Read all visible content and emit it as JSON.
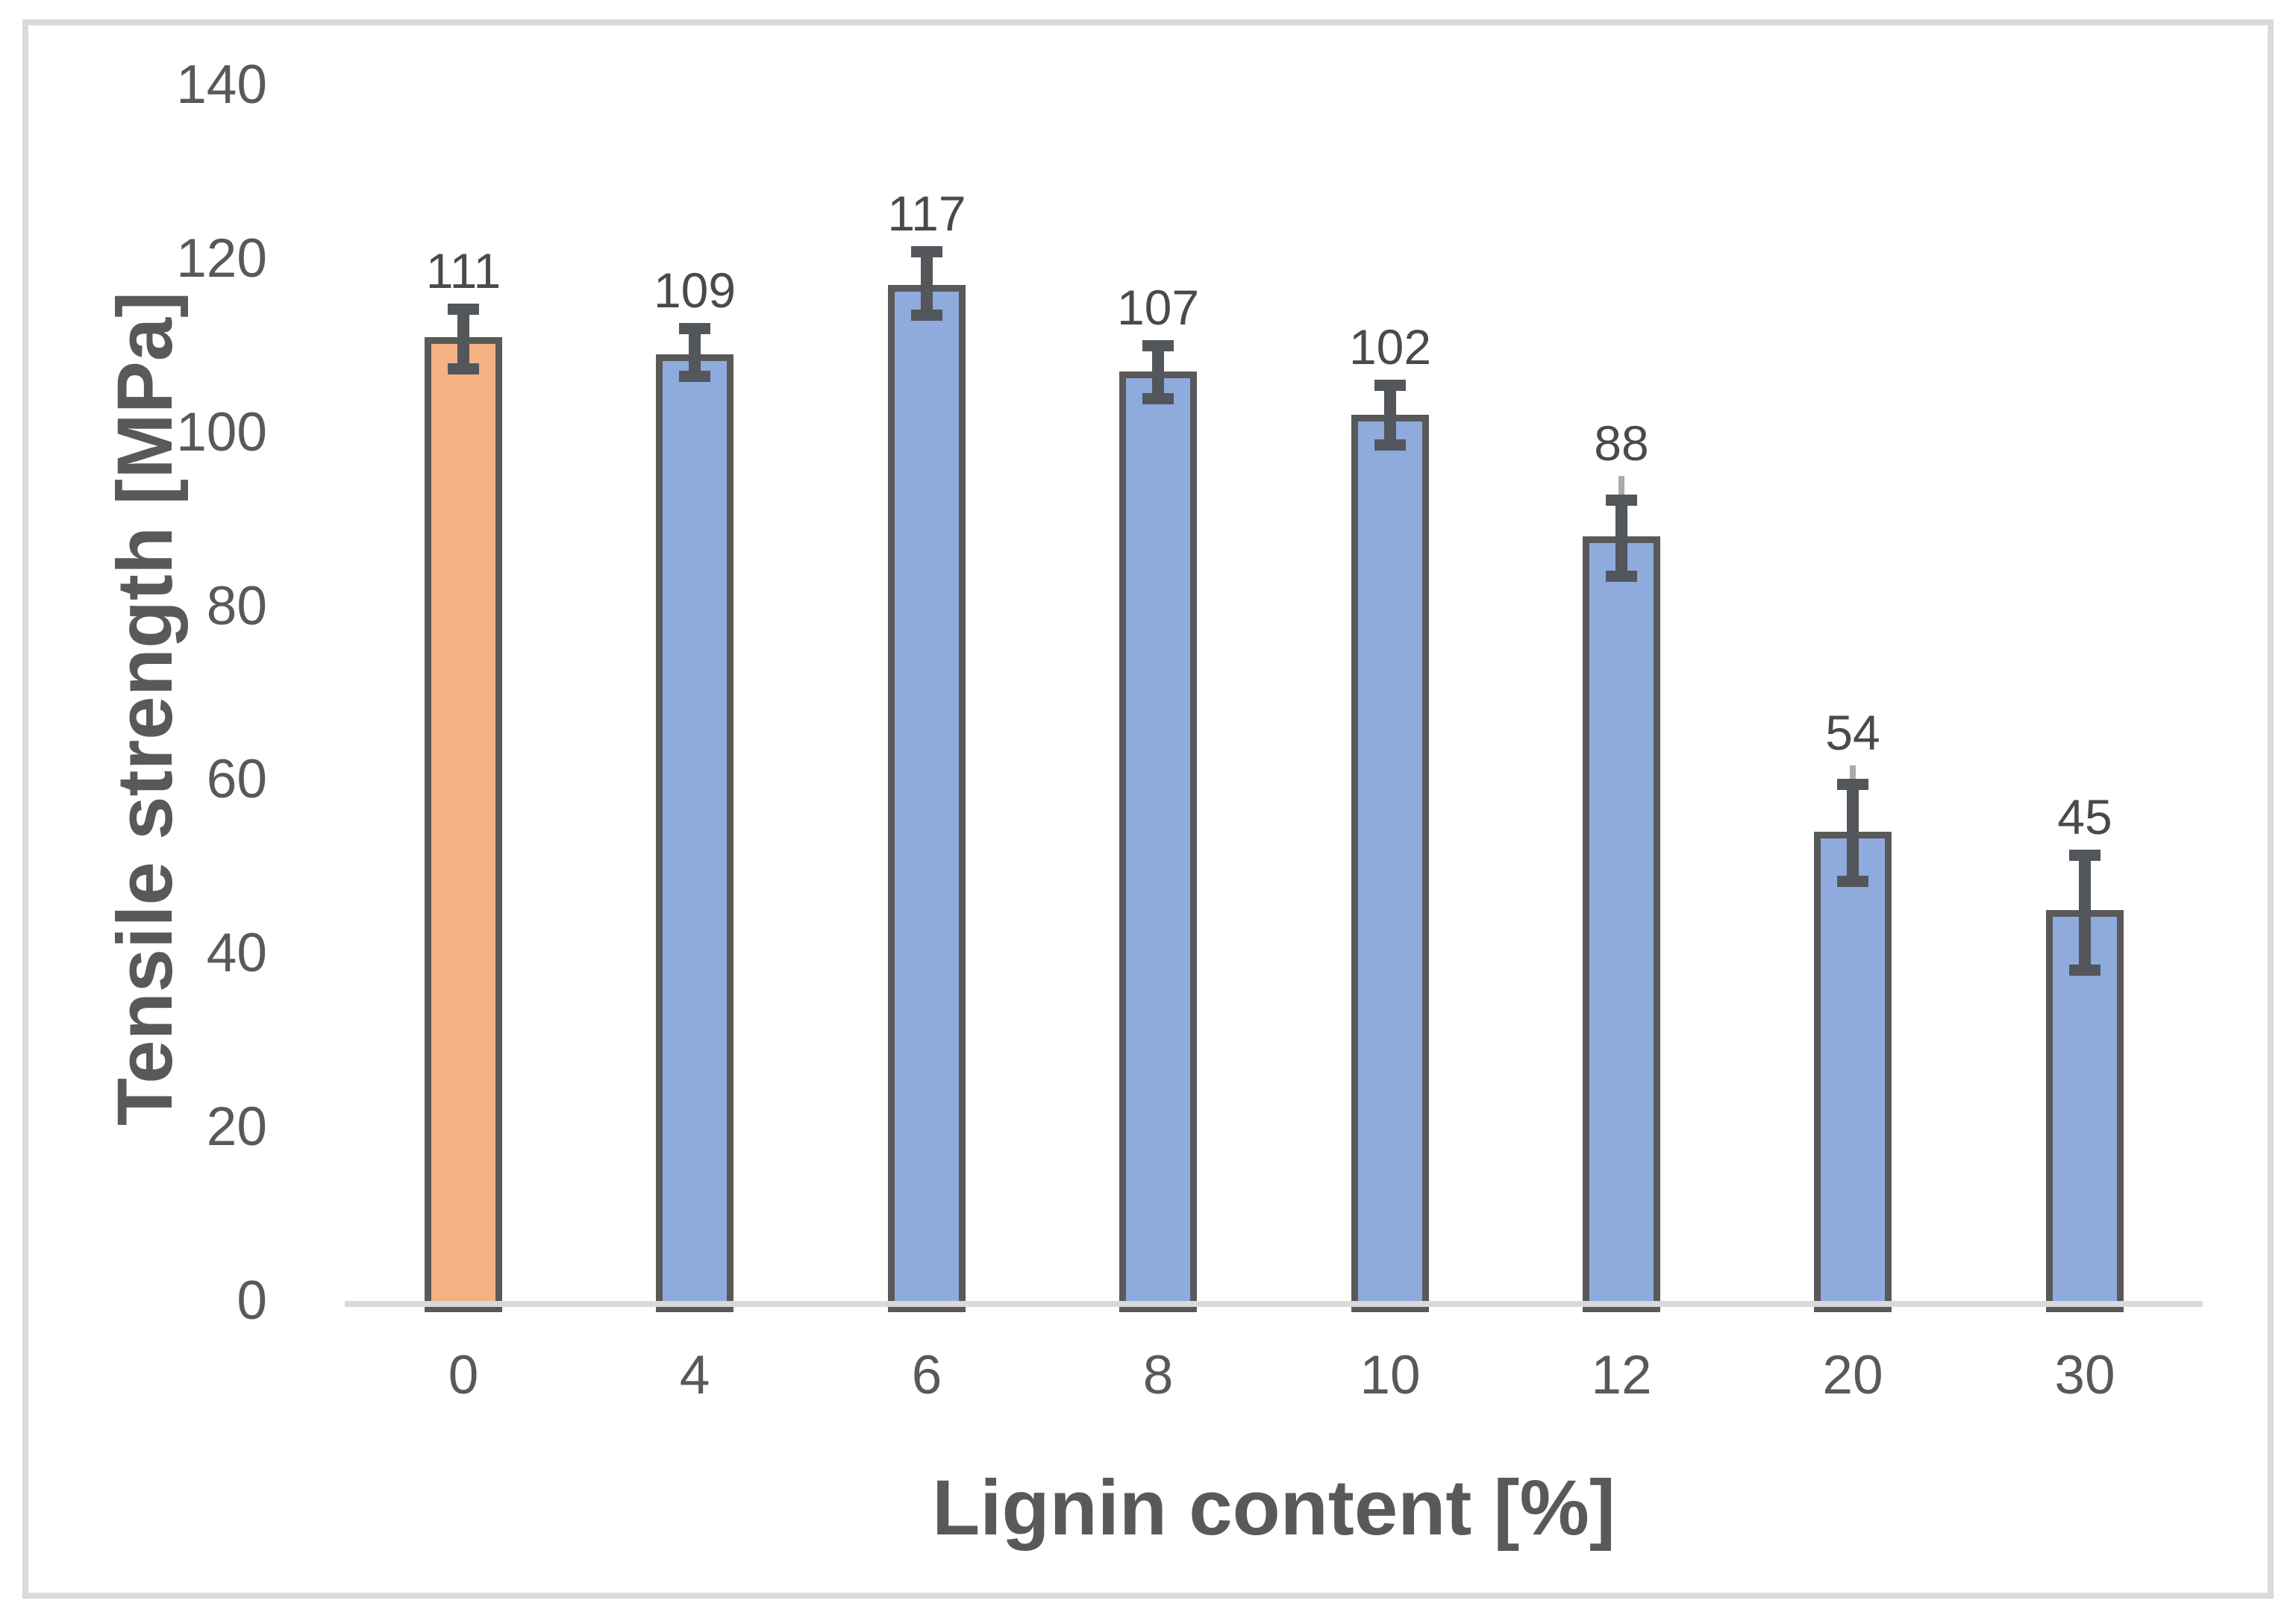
{
  "chart_data": {
    "type": "bar",
    "title": "",
    "xlabel": "Lignin content [%]",
    "ylabel": "Tensile strength [MPa]",
    "categories": [
      "0",
      "4",
      "6",
      "8",
      "10",
      "12",
      "20",
      "30"
    ],
    "values": [
      111,
      109,
      117,
      107,
      102,
      88,
      54,
      45
    ],
    "data_labels": [
      "111",
      "109",
      "117",
      "107",
      "102",
      "88",
      "54",
      "45"
    ],
    "errors_plus": [
      3.2,
      3.0,
      3.8,
      3.0,
      3.4,
      4.2,
      5.5,
      6.3
    ],
    "errors_minus": [
      3.7,
      2.5,
      3.5,
      3.1,
      3.4,
      4.6,
      5.7,
      6.9
    ],
    "whisker_extra_above": [
      0,
      0,
      0,
      0,
      0,
      2.8,
      2.2,
      0
    ],
    "highlight_index": 0,
    "ylim": [
      0,
      140
    ],
    "yticks": [
      "0",
      "20",
      "40",
      "60",
      "80",
      "100",
      "120",
      "140"
    ],
    "grid": false,
    "legend": "none",
    "colors": {
      "highlight_bar_fill": "#F4B183",
      "default_bar_fill": "#8FAADC",
      "bar_border": "#595959",
      "error_bar": "#53565A",
      "whisker_light": "#ABABAB",
      "axis_line": "#D9D9D9",
      "tick_text": "#595959",
      "title_text": "#595959",
      "data_label_text": "#4A4A4A",
      "frame_border": "#DADADA",
      "background": "#FFFFFF"
    }
  }
}
